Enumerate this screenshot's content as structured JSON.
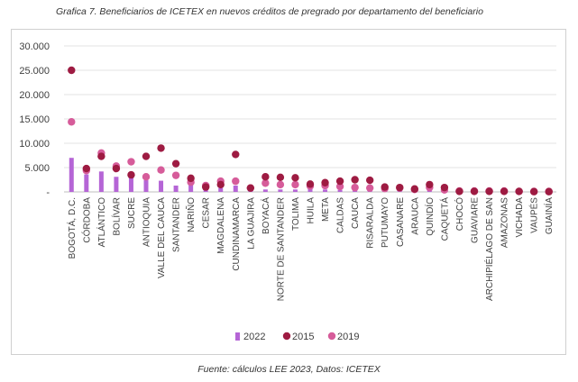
{
  "caption": "Grafica 7. Beneficiarios de ICETEX en nuevos créditos de pregrado por departamento del beneficiario",
  "source": "Fuente: cálculos LEE 2023, Datos: ICETEX",
  "colors": {
    "s2022": "#b565d6",
    "s2015": "#9e1b42",
    "s2019": "#d65c9a"
  },
  "chart_data": {
    "type": "bar",
    "categories": [
      "BOGOTÁ, D.C.",
      "CÓRDOBA",
      "ATLÁNTICO",
      "BOLÍVAR",
      "SUCRE",
      "ANTIOQUIA",
      "VALLE DEL CAUCA",
      "SANTANDER",
      "NARIÑO",
      "CESAR",
      "MAGDALENA",
      "CUNDINAMARCA",
      "LA GUAJIRA",
      "BOYACÁ",
      "NORTE DE SANTANDER",
      "TOLIMA",
      "HUILA",
      "META",
      "CALDAS",
      "CAUCA",
      "RISARALDA",
      "PUTUMAYO",
      "CASANARE",
      "ARAUCA",
      "QUINDÍO",
      "CAQUETÁ",
      "CHOCÓ",
      "GUAVIARE",
      "ARCHIPIÉLAGO DE SAN",
      "AMAZONAS",
      "VICHADA",
      "VAUPÉS",
      "GUAINÍA"
    ],
    "series": [
      {
        "name": "2022",
        "render": "bar",
        "values": [
          7000,
          3600,
          4200,
          3100,
          2900,
          2400,
          2300,
          1300,
          1600,
          500,
          800,
          1300,
          500,
          500,
          500,
          500,
          600,
          500,
          400,
          300,
          200,
          200,
          200,
          200,
          300,
          100,
          100,
          100,
          100,
          50,
          50,
          50,
          50
        ]
      },
      {
        "name": "2015",
        "render": "marker",
        "values": [
          25000,
          4800,
          7300,
          4800,
          3500,
          7300,
          9000,
          5800,
          2800,
          1000,
          1500,
          7700,
          800,
          3100,
          3000,
          2900,
          1600,
          1900,
          2200,
          2500,
          2400,
          1000,
          900,
          600,
          1500,
          900,
          100,
          100,
          100,
          100,
          100,
          50,
          50
        ]
      },
      {
        "name": "2019",
        "render": "marker",
        "values": [
          14400,
          4400,
          8000,
          5300,
          6200,
          3100,
          4500,
          3400,
          2000,
          1300,
          2200,
          2200,
          800,
          1800,
          1500,
          1500,
          1200,
          1300,
          1100,
          900,
          800,
          700,
          800,
          500,
          900,
          400,
          200,
          200,
          200,
          200,
          100,
          100,
          100
        ]
      }
    ],
    "ylim": [
      0,
      30000
    ],
    "yticks": [
      "-",
      "5.000",
      "10.000",
      "15.000",
      "20.000",
      "25.000",
      "30.000"
    ],
    "grid": true,
    "legend": "bottom"
  }
}
